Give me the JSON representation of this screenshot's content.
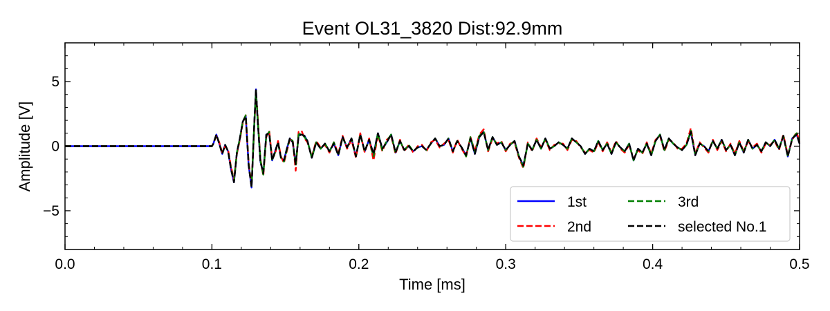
{
  "chart_data": {
    "type": "line",
    "title": "Event OL31_3820 Dist:92.9mm",
    "xlabel": "Time [ms]",
    "ylabel": "Amplitude [V]",
    "xlim": [
      0.0,
      0.5
    ],
    "ylim": [
      -8,
      8
    ],
    "xticks": [
      0.0,
      0.1,
      0.2,
      0.3,
      0.4,
      0.5
    ],
    "xtick_labels": [
      "0.0",
      "0.1",
      "0.2",
      "0.3",
      "0.4",
      "0.5"
    ],
    "yticks": [
      -5,
      0,
      5
    ],
    "ytick_labels": [
      "−5",
      "0",
      "5"
    ],
    "grid": false,
    "legend_position": "lower-right",
    "x": [
      0.0,
      0.1,
      0.101,
      0.103,
      0.105,
      0.107,
      0.109,
      0.111,
      0.113,
      0.115,
      0.117,
      0.119,
      0.121,
      0.123,
      0.125,
      0.127,
      0.129,
      0.13,
      0.131,
      0.133,
      0.135,
      0.137,
      0.139,
      0.141,
      0.143,
      0.145,
      0.147,
      0.149,
      0.151,
      0.153,
      0.155,
      0.157,
      0.159,
      0.161,
      0.163,
      0.165,
      0.168,
      0.171,
      0.174,
      0.177,
      0.18,
      0.183,
      0.186,
      0.189,
      0.192,
      0.195,
      0.198,
      0.201,
      0.204,
      0.207,
      0.21,
      0.213,
      0.216,
      0.219,
      0.222,
      0.225,
      0.228,
      0.231,
      0.234,
      0.237,
      0.24,
      0.243,
      0.246,
      0.249,
      0.252,
      0.255,
      0.258,
      0.261,
      0.264,
      0.267,
      0.27,
      0.273,
      0.276,
      0.279,
      0.282,
      0.285,
      0.288,
      0.291,
      0.294,
      0.297,
      0.3,
      0.303,
      0.306,
      0.309,
      0.312,
      0.315,
      0.318,
      0.321,
      0.324,
      0.327,
      0.33,
      0.333,
      0.336,
      0.339,
      0.342,
      0.345,
      0.348,
      0.351,
      0.354,
      0.357,
      0.36,
      0.363,
      0.366,
      0.369,
      0.372,
      0.375,
      0.378,
      0.381,
      0.384,
      0.387,
      0.39,
      0.393,
      0.396,
      0.399,
      0.402,
      0.405,
      0.408,
      0.411,
      0.414,
      0.417,
      0.42,
      0.423,
      0.426,
      0.429,
      0.432,
      0.435,
      0.438,
      0.441,
      0.444,
      0.447,
      0.45,
      0.453,
      0.456,
      0.459,
      0.462,
      0.465,
      0.468,
      0.471,
      0.474,
      0.477,
      0.48,
      0.483,
      0.486,
      0.489,
      0.492,
      0.495,
      0.498,
      0.5
    ],
    "series": [
      {
        "name": "1st",
        "color": "#0000ff",
        "dash": "solid",
        "values": [
          0,
          0,
          0.2,
          0.9,
          0.2,
          -0.6,
          0.1,
          -0.4,
          -1.8,
          -2.8,
          -0.5,
          0.6,
          1.9,
          2.3,
          -1.5,
          -3.2,
          2.2,
          4.4,
          2.3,
          -1.2,
          -2.1,
          0.9,
          1.0,
          -1.1,
          -0.4,
          0.3,
          -0.9,
          -1.1,
          -0.2,
          0.6,
          0.3,
          -1.4,
          0.8,
          0.9,
          0.8,
          0.4,
          -0.9,
          0.3,
          -0.2,
          0.2,
          -0.4,
          0.2,
          -0.7,
          0.7,
          -0.1,
          0.6,
          -0.8,
          0.9,
          -0.4,
          0.5,
          -0.6,
          1.0,
          -0.2,
          0.3,
          0.9,
          -0.5,
          0.4,
          -0.3,
          0.0,
          -0.4,
          -0.1,
          0.0,
          -0.3,
          0.2,
          0.6,
          0.0,
          0.1,
          0.6,
          -0.4,
          0.4,
          -0.1,
          -0.7,
          0.6,
          -0.6,
          0.7,
          1.1,
          -0.3,
          0.7,
          0.1,
          0.3,
          -0.3,
          0.1,
          0.4,
          -0.8,
          -1.5,
          0.2,
          -0.3,
          0.5,
          -0.2,
          0.6,
          -0.2,
          0.0,
          0.3,
          0.1,
          -0.2,
          0.6,
          0.3,
          0.0,
          -0.6,
          -0.2,
          -0.4,
          0.4,
          -0.3,
          0.2,
          -0.6,
          0.3,
          -0.1,
          -0.4,
          0.2,
          -1.1,
          -0.2,
          -0.5,
          0.2,
          -0.7,
          0.4,
          0.9,
          -0.3,
          0.6,
          0.2,
          -0.1,
          -0.3,
          0.1,
          1.1,
          -0.7,
          0.2,
          0.0,
          -0.4,
          0.4,
          -0.2,
          0.5,
          -0.3,
          0.1,
          -0.7,
          0.3,
          -0.5,
          0.5,
          -0.2,
          0.1,
          -0.4,
          0.3,
          0.0,
          0.5,
          -0.2,
          0.8,
          -0.8,
          0.6,
          0.9,
          0.2
        ]
      },
      {
        "name": "2nd",
        "color": "#ff0000",
        "dash": "dashed",
        "values": [
          0,
          0,
          0.2,
          0.8,
          0.3,
          -0.5,
          0.0,
          -0.3,
          -1.6,
          -2.6,
          -0.6,
          0.5,
          1.8,
          2.4,
          -1.3,
          -3.0,
          2.0,
          4.1,
          2.6,
          -1.0,
          -2.3,
          0.7,
          1.2,
          -1.0,
          -0.6,
          0.4,
          -0.8,
          -1.3,
          -0.4,
          0.5,
          0.5,
          -1.9,
          1.1,
          1.2,
          0.6,
          0.3,
          -0.8,
          0.4,
          -0.1,
          0.1,
          -0.5,
          0.3,
          -0.6,
          0.8,
          -0.2,
          0.5,
          -0.9,
          1.0,
          -0.5,
          0.6,
          -1.1,
          0.9,
          -0.4,
          0.5,
          0.8,
          -0.6,
          0.5,
          -0.4,
          0.1,
          -0.5,
          0.0,
          0.1,
          -0.4,
          0.3,
          0.5,
          -0.1,
          0.2,
          0.5,
          -0.5,
          0.5,
          -0.2,
          -0.8,
          0.7,
          -0.4,
          0.9,
          1.3,
          -0.4,
          0.6,
          0.2,
          0.4,
          -0.4,
          0.2,
          0.3,
          -0.9,
          -1.7,
          0.3,
          -0.4,
          0.6,
          -0.1,
          0.5,
          -0.3,
          0.1,
          0.2,
          0.2,
          -0.3,
          0.5,
          0.4,
          -0.1,
          -0.5,
          -0.3,
          -0.5,
          0.3,
          -0.4,
          0.3,
          -0.5,
          0.4,
          -0.2,
          -0.5,
          0.1,
          -1.0,
          -0.3,
          -0.6,
          0.3,
          -0.6,
          0.5,
          0.8,
          -0.4,
          0.5,
          0.3,
          -0.2,
          -0.2,
          0.2,
          1.4,
          -0.6,
          0.3,
          -0.1,
          -0.5,
          0.5,
          -0.3,
          0.4,
          -0.4,
          0.2,
          -0.6,
          0.4,
          -0.4,
          0.4,
          -0.1,
          0.2,
          -0.5,
          0.2,
          0.1,
          0.4,
          -0.3,
          0.9,
          -0.7,
          0.5,
          1.1,
          0.3
        ]
      },
      {
        "name": "3rd",
        "color": "#008000",
        "dash": "dashed",
        "values": [
          0,
          0,
          0.2,
          0.9,
          0.2,
          -0.6,
          0.1,
          -0.4,
          -1.7,
          -2.7,
          -0.5,
          0.6,
          1.9,
          2.4,
          -1.4,
          -3.1,
          2.1,
          4.3,
          2.4,
          -1.1,
          -2.2,
          0.8,
          1.1,
          -1.1,
          -0.5,
          0.3,
          -0.9,
          -1.2,
          -0.3,
          0.6,
          0.4,
          -1.5,
          0.9,
          1.0,
          0.7,
          0.4,
          -0.9,
          0.3,
          -0.2,
          0.2,
          -0.4,
          0.3,
          -0.7,
          0.7,
          -0.1,
          0.6,
          -0.8,
          0.9,
          -0.4,
          0.5,
          -0.8,
          1.0,
          -0.3,
          0.4,
          0.9,
          -0.5,
          0.4,
          -0.3,
          0.1,
          -0.4,
          -0.1,
          0.0,
          -0.3,
          0.2,
          0.6,
          0.0,
          0.1,
          0.6,
          -0.4,
          0.4,
          -0.1,
          -0.8,
          0.7,
          -0.5,
          0.8,
          1.1,
          -0.3,
          0.7,
          0.1,
          0.3,
          -0.3,
          0.1,
          0.4,
          -0.8,
          -1.6,
          0.2,
          -0.3,
          0.5,
          -0.2,
          0.6,
          -0.2,
          0.0,
          0.3,
          0.1,
          -0.2,
          0.6,
          0.3,
          0.0,
          -0.6,
          -0.2,
          -0.4,
          0.4,
          -0.3,
          0.2,
          -0.6,
          0.3,
          -0.1,
          -0.4,
          0.2,
          -1.1,
          -0.2,
          -0.5,
          0.2,
          -0.7,
          0.4,
          0.9,
          -0.3,
          0.6,
          0.2,
          -0.1,
          -0.3,
          0.1,
          1.2,
          -0.7,
          0.2,
          0.0,
          -0.4,
          0.4,
          -0.2,
          0.5,
          -0.3,
          0.1,
          -0.7,
          0.3,
          -0.5,
          0.5,
          -0.2,
          0.1,
          -0.4,
          0.3,
          0.0,
          0.5,
          -0.2,
          0.8,
          -0.8,
          0.6,
          1.0,
          0.2
        ]
      },
      {
        "name": "selected No.1",
        "color": "#000000",
        "dash": "dashed",
        "values": [
          0,
          0,
          0.2,
          0.9,
          0.2,
          -0.6,
          0.1,
          -0.4,
          -1.8,
          -2.8,
          -0.5,
          0.6,
          1.9,
          2.3,
          -1.5,
          -3.2,
          2.2,
          4.4,
          2.3,
          -1.2,
          -2.1,
          0.9,
          1.0,
          -1.1,
          -0.4,
          0.3,
          -0.9,
          -1.1,
          -0.2,
          0.6,
          0.3,
          -1.4,
          0.8,
          0.9,
          0.8,
          0.4,
          -0.9,
          0.3,
          -0.2,
          0.2,
          -0.4,
          0.2,
          -0.7,
          0.7,
          -0.1,
          0.6,
          -0.8,
          0.9,
          -0.4,
          0.5,
          -0.6,
          1.0,
          -0.2,
          0.3,
          0.9,
          -0.5,
          0.4,
          -0.3,
          0.0,
          -0.4,
          -0.1,
          0.0,
          -0.3,
          0.2,
          0.6,
          0.0,
          0.1,
          0.6,
          -0.4,
          0.4,
          -0.1,
          -0.7,
          0.6,
          -0.6,
          0.7,
          1.1,
          -0.3,
          0.7,
          0.1,
          0.3,
          -0.3,
          0.1,
          0.4,
          -0.8,
          -1.5,
          0.2,
          -0.3,
          0.5,
          -0.2,
          0.6,
          -0.2,
          0.0,
          0.3,
          0.1,
          -0.2,
          0.6,
          0.3,
          0.0,
          -0.6,
          -0.2,
          -0.4,
          0.4,
          -0.3,
          0.2,
          -0.6,
          0.3,
          -0.1,
          -0.4,
          0.2,
          -1.1,
          -0.2,
          -0.5,
          0.2,
          -0.7,
          0.4,
          0.9,
          -0.3,
          0.6,
          0.2,
          -0.1,
          -0.3,
          0.1,
          1.1,
          -0.7,
          0.2,
          0.0,
          -0.4,
          0.4,
          -0.2,
          0.5,
          -0.3,
          0.1,
          -0.7,
          0.3,
          -0.5,
          0.5,
          -0.2,
          0.1,
          -0.4,
          0.3,
          0.0,
          0.5,
          -0.2,
          0.8,
          -0.8,
          0.6,
          0.9,
          0.2
        ]
      }
    ]
  }
}
